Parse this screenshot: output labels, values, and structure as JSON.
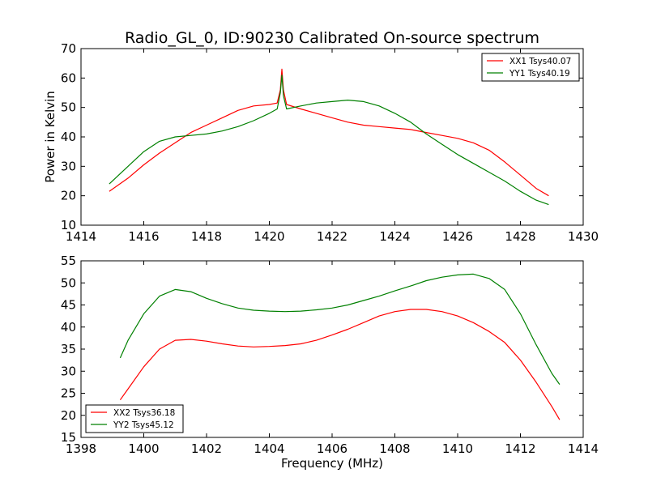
{
  "figure": {
    "title": "Radio_GL_0, ID:90230 Calibrated On-source spectrum",
    "xlabel": "Frequency (MHz)",
    "ylabel": "Power in Kelvin",
    "colors": {
      "red": "#ff0000",
      "green": "#008000"
    }
  },
  "chart_data": [
    {
      "type": "line",
      "title": "Radio_GL_0, ID:90230 Calibrated On-source spectrum",
      "xlabel": "",
      "ylabel": "Power in Kelvin",
      "xlim": [
        1414,
        1430
      ],
      "ylim": [
        10,
        70
      ],
      "xticks": [
        1414,
        1416,
        1418,
        1420,
        1422,
        1424,
        1426,
        1428,
        1430
      ],
      "yticks": [
        10,
        20,
        30,
        40,
        50,
        60,
        70
      ],
      "legend_position": "top-right",
      "grid": false,
      "series": [
        {
          "name": "XX1 Tsys40.07",
          "color": "#ff0000",
          "x": [
            1414.9,
            1415.5,
            1416,
            1416.5,
            1417,
            1417.5,
            1418,
            1418.5,
            1419,
            1419.5,
            1420,
            1420.25,
            1420.35,
            1420.4,
            1420.45,
            1420.55,
            1421,
            1421.5,
            1422,
            1422.5,
            1423,
            1423.5,
            1424,
            1424.5,
            1425,
            1425.5,
            1426,
            1426.5,
            1427,
            1427.5,
            1428,
            1428.5,
            1428.9
          ],
          "y": [
            21.5,
            26,
            30.5,
            34.5,
            38,
            41.5,
            44,
            46.5,
            49,
            50.5,
            51,
            51.5,
            56,
            63,
            56,
            51,
            49.5,
            48,
            46.5,
            45,
            44,
            43.5,
            43,
            42.5,
            41.5,
            40.5,
            39.5,
            38,
            35.5,
            31.5,
            27,
            22.5,
            20
          ]
        },
        {
          "name": "YY1 Tsys40.19",
          "color": "#008000",
          "x": [
            1414.9,
            1415.5,
            1416,
            1416.5,
            1417,
            1417.5,
            1418,
            1418.5,
            1419,
            1419.5,
            1420,
            1420.25,
            1420.35,
            1420.4,
            1420.45,
            1420.55,
            1421,
            1421.5,
            1422,
            1422.5,
            1423,
            1423.5,
            1424,
            1424.5,
            1425,
            1425.5,
            1426,
            1426.5,
            1427,
            1427.5,
            1428,
            1428.5,
            1428.9
          ],
          "y": [
            24,
            30,
            35,
            38.5,
            40,
            40.5,
            41,
            42,
            43.5,
            45.5,
            48,
            49.5,
            55,
            61,
            54,
            49.5,
            50.5,
            51.5,
            52,
            52.5,
            52,
            50.5,
            48,
            45,
            41,
            37.5,
            34,
            31,
            28,
            25,
            21.5,
            18.5,
            17
          ]
        }
      ]
    },
    {
      "type": "line",
      "title": "",
      "xlabel": "Frequency (MHz)",
      "ylabel": "",
      "xlim": [
        1398,
        1414
      ],
      "ylim": [
        15,
        55
      ],
      "xticks": [
        1398,
        1400,
        1402,
        1404,
        1406,
        1408,
        1410,
        1412,
        1414
      ],
      "yticks": [
        15,
        20,
        25,
        30,
        35,
        40,
        45,
        50,
        55
      ],
      "legend_position": "bottom-left",
      "grid": false,
      "series": [
        {
          "name": "XX2 Tsys36.18",
          "color": "#ff0000",
          "x": [
            1399.25,
            1399.5,
            1400,
            1400.5,
            1401,
            1401.5,
            1402,
            1402.5,
            1403,
            1403.5,
            1404,
            1404.5,
            1405,
            1405.5,
            1406,
            1406.5,
            1407,
            1407.5,
            1408,
            1408.5,
            1409,
            1409.5,
            1410,
            1410.5,
            1411,
            1411.5,
            1412,
            1412.5,
            1413,
            1413.25
          ],
          "y": [
            23.5,
            26,
            31,
            35,
            37,
            37.2,
            36.8,
            36.2,
            35.7,
            35.5,
            35.6,
            35.8,
            36.2,
            37,
            38.2,
            39.5,
            41,
            42.5,
            43.5,
            44,
            44,
            43.5,
            42.5,
            41,
            39,
            36.5,
            32.5,
            27.5,
            22,
            19
          ]
        },
        {
          "name": "YY2 Tsys45.12",
          "color": "#008000",
          "x": [
            1399.25,
            1399.5,
            1400,
            1400.5,
            1401,
            1401.5,
            1402,
            1402.5,
            1403,
            1403.5,
            1404,
            1404.5,
            1405,
            1405.5,
            1406,
            1406.5,
            1407,
            1407.5,
            1408,
            1408.5,
            1409,
            1409.5,
            1410,
            1410.5,
            1411,
            1411.5,
            1412,
            1412.5,
            1413,
            1413.25
          ],
          "y": [
            33,
            37,
            43,
            47,
            48.5,
            48,
            46.5,
            45.3,
            44.3,
            43.8,
            43.6,
            43.5,
            43.6,
            43.9,
            44.3,
            45,
            46,
            47,
            48.2,
            49.3,
            50.5,
            51.3,
            51.8,
            52,
            51,
            48.5,
            43,
            36,
            29.5,
            27
          ]
        }
      ]
    }
  ]
}
